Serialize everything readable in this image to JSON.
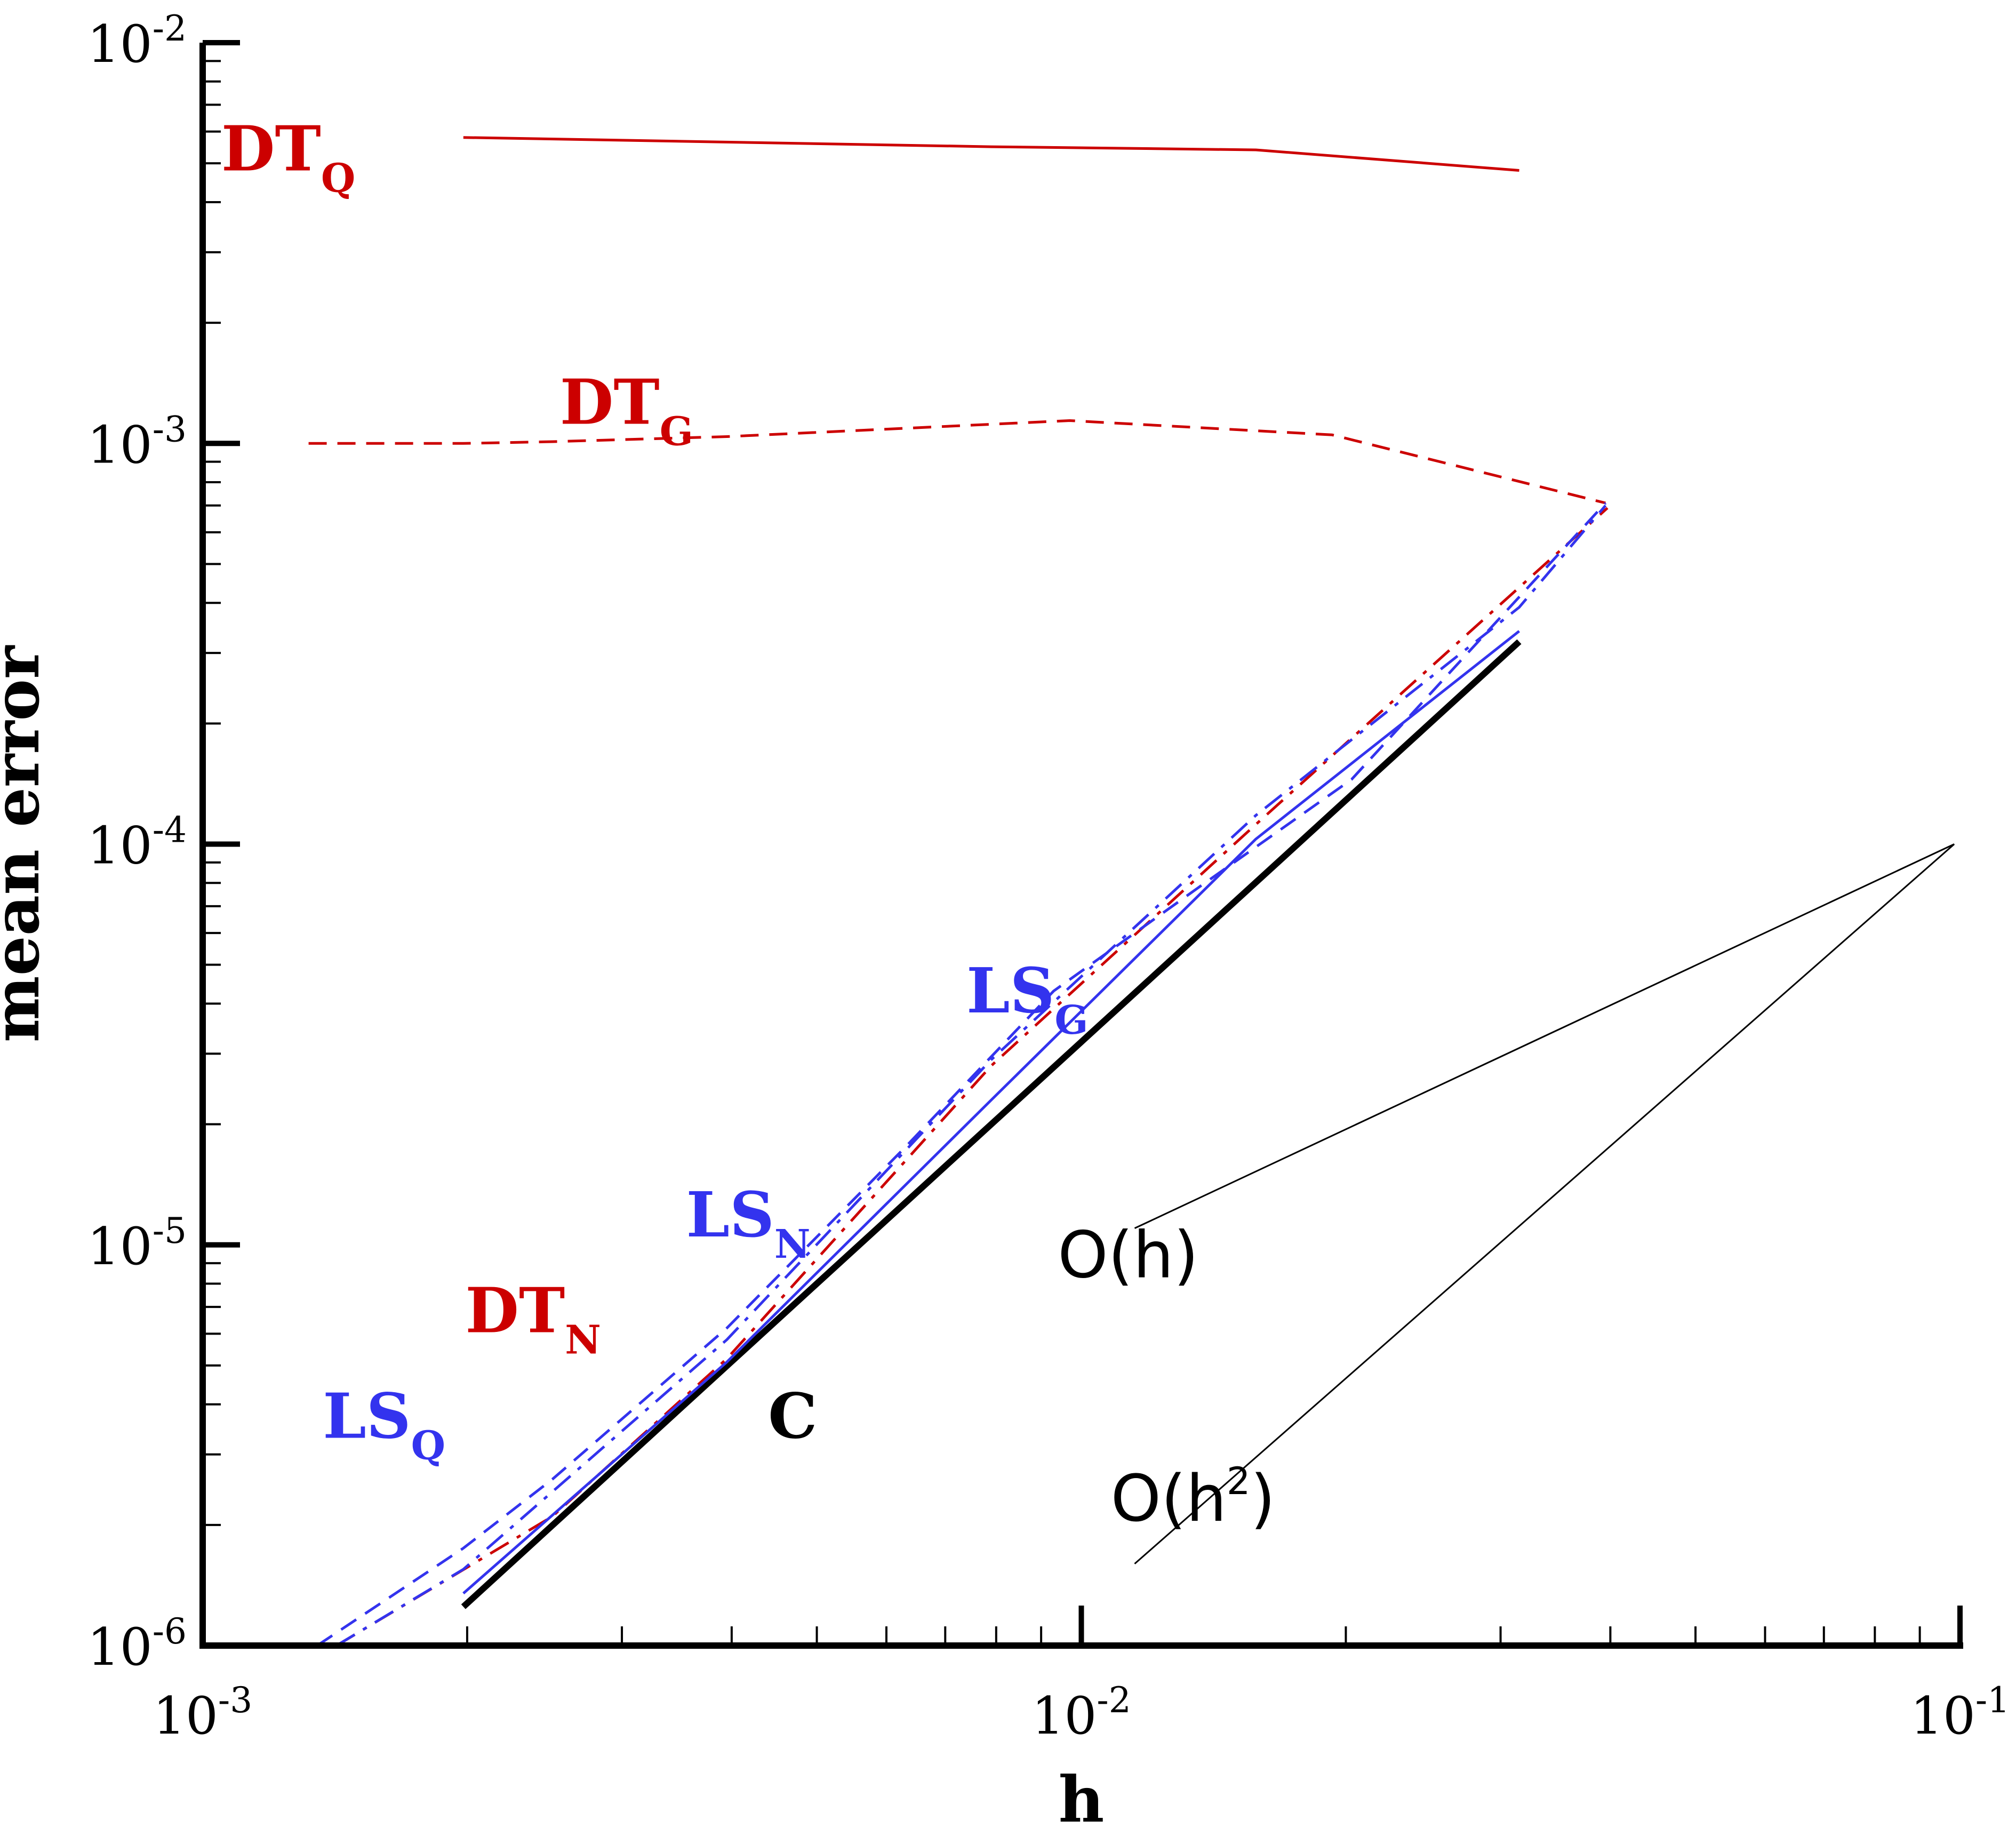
{
  "chart_data": {
    "type": "line",
    "xlabel": "h",
    "ylabel": "mean error",
    "xscale": "log",
    "yscale": "log",
    "xlim": [
      0.001,
      0.1
    ],
    "ylim": [
      1e-06,
      0.01
    ],
    "grid": false,
    "legend": "none (inline series labels)",
    "x_tick_labels": [
      {
        "base": "10",
        "exp": "-3",
        "value": 0.001
      },
      {
        "base": "10",
        "exp": "-2",
        "value": 0.01
      },
      {
        "base": "10",
        "exp": "-1",
        "value": 0.1
      }
    ],
    "y_tick_labels": [
      {
        "base": "10",
        "exp": "-6",
        "value": 1e-06
      },
      {
        "base": "10",
        "exp": "-5",
        "value": 1e-05
      },
      {
        "base": "10",
        "exp": "-4",
        "value": 0.0001
      },
      {
        "base": "10",
        "exp": "-3",
        "value": 0.001
      },
      {
        "base": "10",
        "exp": "-2",
        "value": 0.01
      }
    ],
    "series": [
      {
        "name": "C",
        "label_main": "C",
        "label_sub": "",
        "color": "#000000",
        "dash": "solid",
        "width": 12,
        "x": [
          0.00198,
          0.0315
        ],
        "y": [
          1.25e-06,
          0.00032
        ],
        "label_at": [
          0.0044,
          3.3e-06
        ]
      },
      {
        "name": "DTQ",
        "label_main": "DT",
        "label_sub": "Q",
        "color": "#cc0000",
        "dash": "solid",
        "width": 5,
        "x": [
          0.00198,
          0.0079,
          0.0158,
          0.0315
        ],
        "y": [
          0.0058,
          0.0055,
          0.0054,
          0.0048
        ],
        "label_at": [
          0.00105,
          0.0048
        ]
      },
      {
        "name": "DTG",
        "label_main": "DT",
        "label_sub": "G",
        "color": "#cc0000",
        "dash": "dashed",
        "width": 5,
        "x": [
          0.00132,
          0.00198,
          0.0025,
          0.00395,
          0.0097,
          0.0193,
          0.0395
        ],
        "y": [
          0.001,
          0.001,
          0.00101,
          0.00104,
          0.00114,
          0.00105,
          0.00071
        ],
        "label_at": [
          0.00255,
          0.00112
        ]
      },
      {
        "name": "DTN",
        "label_main": "DT",
        "label_sub": "N",
        "color": "#cc0000",
        "dash": "dashdot",
        "width": 5,
        "x": [
          0.00142,
          0.0025,
          0.00395,
          0.0079,
          0.0158,
          0.0397
        ],
        "y": [
          1e-06,
          2.1e-06,
          5.2e-06,
          2.8e-05,
          0.000112,
          0.00069
        ],
        "label_at": [
          0.00199,
          6.05e-06
        ]
      },
      {
        "name": "LSG",
        "label_main": "LS",
        "label_sub": "G",
        "color": "#3333ee",
        "dash": "dashed",
        "width": 5,
        "x": [
          0.00135,
          0.00198,
          0.0025,
          0.00395,
          0.0063,
          0.0093,
          0.0136,
          0.0203,
          0.0395
        ],
        "y": [
          1e-06,
          1.75e-06,
          2.6e-06,
          6.2e-06,
          1.75e-05,
          4.3e-05,
          7.8e-05,
          0.000145,
          0.00071
        ],
        "label_at": [
          0.0074,
          3.8e-05
        ]
      },
      {
        "name": "LSN",
        "label_main": "LS",
        "label_sub": "N",
        "color": "#3333ee",
        "dash": "dashdot",
        "width": 5,
        "x": [
          0.00142,
          0.00198,
          0.00395,
          0.0079,
          0.0158,
          0.0315,
          0.0395
        ],
        "y": [
          1e-06,
          1.55e-06,
          5.8e-06,
          2.9e-05,
          0.000118,
          0.00039,
          0.0007
        ],
        "label_at": [
          0.00355,
          1.05e-05
        ]
      },
      {
        "name": "LSQ",
        "label_main": "LS",
        "label_sub": "Q",
        "color": "#3333ee",
        "dash": "solid",
        "width": 5,
        "x": [
          0.00198,
          0.00395,
          0.0079,
          0.0158,
          0.0315
        ],
        "y": [
          1.35e-06,
          5.1e-06,
          2.3e-05,
          0.000103,
          0.00034
        ],
        "label_at": [
          0.00137,
          3.3e-06
        ]
      }
    ],
    "reference_lines": [
      {
        "label": "O(h)",
        "main": "O(h",
        "sup": "",
        "close": ")",
        "x": [
          0.0115,
          0.0985
        ],
        "y": [
          1.1e-05,
          0.0001
        ],
        "label_at": [
          0.0094,
          8.3e-06
        ]
      },
      {
        "label": "O(h^2)",
        "main": "O(h",
        "sup": "2",
        "close": ")",
        "x": [
          0.0115,
          0.0985
        ],
        "y": [
          1.6e-06,
          0.0001
        ],
        "label_at": [
          0.0108,
          2.05e-06
        ]
      }
    ]
  }
}
